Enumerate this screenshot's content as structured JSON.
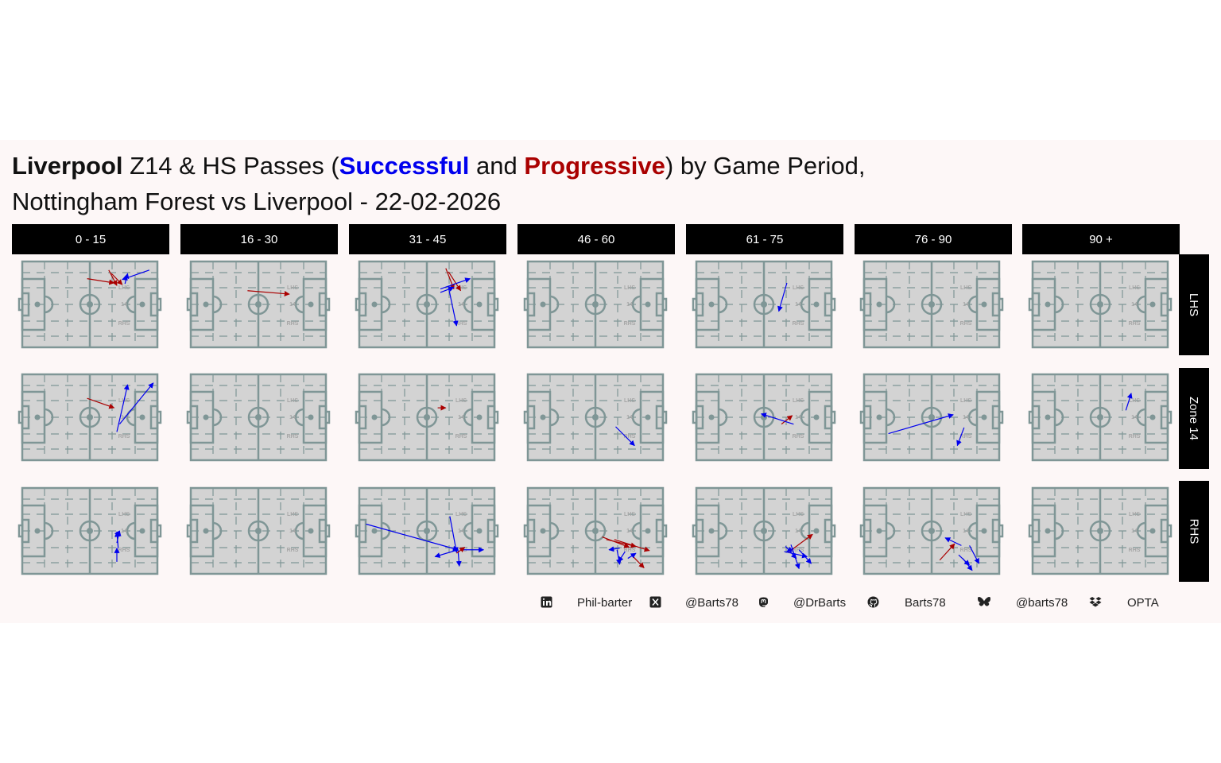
{
  "title": {
    "team": "Liverpool",
    "part1": " Z14 & HS Passes (",
    "successful": "Successful",
    "and": " and ",
    "progressive": "Progressive",
    "part2": ") by Game Period,",
    "line2": "Nottingham Forest vs Liverpool - 22-02-2026"
  },
  "colors": {
    "successful": "#0000ee",
    "progressive": "#aa0000",
    "pitch_fill": "#d3d3d3",
    "pitch_line": "#7f9696",
    "zone_label": "#a6a6a6"
  },
  "pitch_labels": {
    "lhs": "LHS",
    "z14": "14",
    "rhs": "RHS"
  },
  "chart_data": {
    "type": "facet-arrow-map",
    "columns": [
      "0 - 15",
      "16 - 30",
      "31 - 45",
      "46 - 60",
      "61 - 75",
      "76 - 90",
      "90 +"
    ],
    "rows": [
      "LHS",
      "Zone 14",
      "RHS"
    ],
    "xlim": [
      0,
      100
    ],
    "ylim": [
      0,
      100
    ],
    "passes": [
      {
        "row": 0,
        "col": 0,
        "type": "progressive",
        "x1": 48,
        "y1": 80,
        "x2": 68,
        "y2": 75
      },
      {
        "row": 0,
        "col": 0,
        "type": "progressive",
        "x1": 64,
        "y1": 90,
        "x2": 70,
        "y2": 72
      },
      {
        "row": 0,
        "col": 0,
        "type": "progressive",
        "x1": 66,
        "y1": 86,
        "x2": 74,
        "y2": 73
      },
      {
        "row": 0,
        "col": 0,
        "type": "successful",
        "x1": 94,
        "y1": 90,
        "x2": 74,
        "y2": 79
      },
      {
        "row": 0,
        "col": 0,
        "type": "successful",
        "x1": 76,
        "y1": 74,
        "x2": 78,
        "y2": 86
      },
      {
        "row": 0,
        "col": 1,
        "type": "progressive",
        "x1": 42,
        "y1": 66,
        "x2": 73,
        "y2": 62
      },
      {
        "row": 0,
        "col": 2,
        "type": "progressive",
        "x1": 64,
        "y1": 92,
        "x2": 70,
        "y2": 68
      },
      {
        "row": 0,
        "col": 2,
        "type": "progressive",
        "x1": 66,
        "y1": 88,
        "x2": 75,
        "y2": 66
      },
      {
        "row": 0,
        "col": 2,
        "type": "successful",
        "x1": 60,
        "y1": 68,
        "x2": 82,
        "y2": 80
      },
      {
        "row": 0,
        "col": 2,
        "type": "successful",
        "x1": 66,
        "y1": 70,
        "x2": 72,
        "y2": 25
      },
      {
        "row": 0,
        "col": 2,
        "type": "successful",
        "x1": 60,
        "y1": 64,
        "x2": 70,
        "y2": 70
      },
      {
        "row": 0,
        "col": 4,
        "type": "successful",
        "x1": 67,
        "y1": 75,
        "x2": 61,
        "y2": 42
      },
      {
        "row": 1,
        "col": 0,
        "type": "progressive",
        "x1": 48,
        "y1": 72,
        "x2": 68,
        "y2": 61
      },
      {
        "row": 1,
        "col": 0,
        "type": "successful",
        "x1": 70,
        "y1": 33,
        "x2": 78,
        "y2": 88
      },
      {
        "row": 1,
        "col": 0,
        "type": "successful",
        "x1": 72,
        "y1": 42,
        "x2": 97,
        "y2": 90
      },
      {
        "row": 1,
        "col": 2,
        "type": "progressive",
        "x1": 58,
        "y1": 61,
        "x2": 64,
        "y2": 61
      },
      {
        "row": 1,
        "col": 3,
        "type": "successful",
        "x1": 65,
        "y1": 39,
        "x2": 79,
        "y2": 17
      },
      {
        "row": 1,
        "col": 4,
        "type": "progressive",
        "x1": 63,
        "y1": 42,
        "x2": 71,
        "y2": 52
      },
      {
        "row": 1,
        "col": 4,
        "type": "successful",
        "x1": 72,
        "y1": 42,
        "x2": 48,
        "y2": 54
      },
      {
        "row": 1,
        "col": 5,
        "type": "successful",
        "x1": 18,
        "y1": 31,
        "x2": 66,
        "y2": 53
      },
      {
        "row": 1,
        "col": 5,
        "type": "successful",
        "x1": 74,
        "y1": 38,
        "x2": 69,
        "y2": 17
      },
      {
        "row": 1,
        "col": 6,
        "type": "successful",
        "x1": 69,
        "y1": 58,
        "x2": 73,
        "y2": 78
      },
      {
        "row": 2,
        "col": 0,
        "type": "successful",
        "x1": 69,
        "y1": 43,
        "x2": 72,
        "y2": 50
      },
      {
        "row": 2,
        "col": 0,
        "type": "successful",
        "x1": 70,
        "y1": 36,
        "x2": 72,
        "y2": 50
      },
      {
        "row": 2,
        "col": 0,
        "type": "successful",
        "x1": 71,
        "y1": 30,
        "x2": 70,
        "y2": 49
      },
      {
        "row": 2,
        "col": 0,
        "type": "successful",
        "x1": 70,
        "y1": 14,
        "x2": 70,
        "y2": 30
      },
      {
        "row": 2,
        "col": 2,
        "type": "successful",
        "x1": 5,
        "y1": 58,
        "x2": 73,
        "y2": 28
      },
      {
        "row": 2,
        "col": 2,
        "type": "successful",
        "x1": 67,
        "y1": 67,
        "x2": 72,
        "y2": 25
      },
      {
        "row": 2,
        "col": 2,
        "type": "successful",
        "x1": 73,
        "y1": 28,
        "x2": 56,
        "y2": 20
      },
      {
        "row": 2,
        "col": 2,
        "type": "successful",
        "x1": 73,
        "y1": 28,
        "x2": 74,
        "y2": 9
      },
      {
        "row": 2,
        "col": 2,
        "type": "successful",
        "x1": 76,
        "y1": 28,
        "x2": 92,
        "y2": 28
      },
      {
        "row": 2,
        "col": 2,
        "type": "progressive",
        "x1": 72,
        "y1": 24,
        "x2": 78,
        "y2": 31
      },
      {
        "row": 2,
        "col": 3,
        "type": "progressive",
        "x1": 55,
        "y1": 43,
        "x2": 75,
        "y2": 31
      },
      {
        "row": 2,
        "col": 3,
        "type": "progressive",
        "x1": 58,
        "y1": 40,
        "x2": 80,
        "y2": 32
      },
      {
        "row": 2,
        "col": 3,
        "type": "progressive",
        "x1": 64,
        "y1": 40,
        "x2": 90,
        "y2": 27
      },
      {
        "row": 2,
        "col": 3,
        "type": "progressive",
        "x1": 78,
        "y1": 20,
        "x2": 86,
        "y2": 7
      },
      {
        "row": 2,
        "col": 3,
        "type": "successful",
        "x1": 68,
        "y1": 30,
        "x2": 60,
        "y2": 28
      },
      {
        "row": 2,
        "col": 3,
        "type": "successful",
        "x1": 66,
        "y1": 28,
        "x2": 68,
        "y2": 11
      },
      {
        "row": 2,
        "col": 3,
        "type": "successful",
        "x1": 72,
        "y1": 26,
        "x2": 67,
        "y2": 14
      },
      {
        "row": 2,
        "col": 3,
        "type": "successful",
        "x1": 74,
        "y1": 18,
        "x2": 80,
        "y2": 24
      },
      {
        "row": 2,
        "col": 4,
        "type": "progressive",
        "x1": 68,
        "y1": 25,
        "x2": 86,
        "y2": 46
      },
      {
        "row": 2,
        "col": 4,
        "type": "successful",
        "x1": 66,
        "y1": 32,
        "x2": 74,
        "y2": 18
      },
      {
        "row": 2,
        "col": 4,
        "type": "successful",
        "x1": 70,
        "y1": 34,
        "x2": 76,
        "y2": 6
      },
      {
        "row": 2,
        "col": 4,
        "type": "successful",
        "x1": 65,
        "y1": 26,
        "x2": 82,
        "y2": 20
      },
      {
        "row": 2,
        "col": 4,
        "type": "successful",
        "x1": 76,
        "y1": 28,
        "x2": 85,
        "y2": 12
      },
      {
        "row": 2,
        "col": 4,
        "type": "successful",
        "x1": 72,
        "y1": 30,
        "x2": 67,
        "y2": 26
      },
      {
        "row": 2,
        "col": 5,
        "type": "progressive",
        "x1": 56,
        "y1": 16,
        "x2": 67,
        "y2": 35
      },
      {
        "row": 2,
        "col": 5,
        "type": "successful",
        "x1": 72,
        "y1": 33,
        "x2": 60,
        "y2": 42
      },
      {
        "row": 2,
        "col": 5,
        "type": "successful",
        "x1": 70,
        "y1": 22,
        "x2": 78,
        "y2": 10
      },
      {
        "row": 2,
        "col": 5,
        "type": "successful",
        "x1": 73,
        "y1": 18,
        "x2": 80,
        "y2": 4
      },
      {
        "row": 2,
        "col": 5,
        "type": "successful",
        "x1": 78,
        "y1": 33,
        "x2": 85,
        "y2": 12
      }
    ]
  },
  "footer": {
    "items": [
      {
        "icon": "linkedin-icon",
        "text": "Phil-barter"
      },
      {
        "icon": "x-icon",
        "text": "@Barts78"
      },
      {
        "icon": "mastodon-icon",
        "text": "@DrBarts"
      },
      {
        "icon": "github-icon",
        "text": "Barts78"
      },
      {
        "icon": "bluesky-icon",
        "text": "@barts78"
      },
      {
        "icon": "dropbox-icon",
        "text": "OPTA"
      }
    ]
  }
}
